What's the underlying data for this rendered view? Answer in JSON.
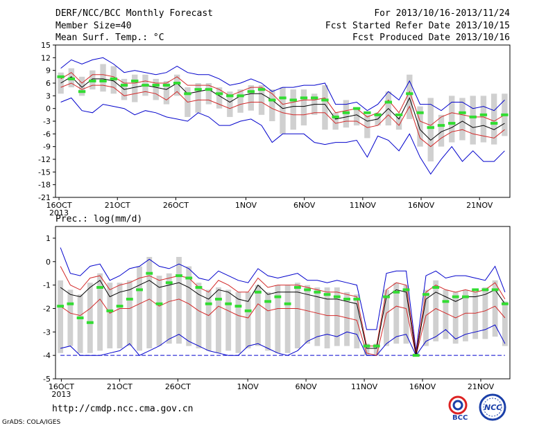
{
  "header": {
    "title": "DERF/NCC/BCC Monthly Forecast",
    "member_size": "Member Size=40",
    "variable": "Mean Surf. Temp.: °C",
    "period": "For 2013/10/16-2013/11/24",
    "fcst_started": "Fcst Started Refer Date 2013/10/15",
    "fcst_produced": "Fcst Produced Date 2013/10/16"
  },
  "footer": {
    "url": "http://cmdp.ncc.cma.gov.cn",
    "grads": "GrADS: COLA/IGES",
    "logo_bcc": "BCC",
    "logo_ncc": "NCC"
  },
  "colors": {
    "max": "#0000cc",
    "spread": "#d22828",
    "mean": "#000000",
    "median": "#32dc32",
    "box": "#d0d0d0",
    "baseline": "#0000cc"
  },
  "chart_data": [
    {
      "type": "box-line",
      "title": "Mean Surf. Temp.: °C",
      "ylim": [
        -21,
        15
      ],
      "yticks": [
        -21,
        -18,
        -15,
        -12,
        -9,
        -6,
        -3,
        0,
        3,
        6,
        9,
        12,
        15
      ],
      "xlabels": [
        {
          "day": 0,
          "label": "16OCT",
          "sub": "2013"
        },
        {
          "day": 5,
          "label": "21OCT"
        },
        {
          "day": 10,
          "label": "26OCT"
        },
        {
          "day": 16,
          "label": "1NOV"
        },
        {
          "day": 21,
          "label": "6NOV"
        },
        {
          "day": 26,
          "label": "11NOV"
        },
        {
          "day": 31,
          "label": "16NOV"
        },
        {
          "day": 36,
          "label": "21NOV"
        }
      ],
      "max": [
        9.5,
        11.5,
        10.5,
        11.5,
        12,
        10.5,
        8.5,
        9,
        8.5,
        8,
        8.5,
        10,
        8.5,
        8,
        8,
        7,
        5.5,
        6,
        7,
        6,
        4,
        5,
        5,
        5.5,
        5.5,
        6,
        1,
        1,
        1.5,
        -0.5,
        1,
        4,
        2,
        6.5,
        1,
        1,
        -0.5,
        1.5,
        1.5,
        0,
        0.5,
        -0.5,
        2
      ],
      "upper": [
        7,
        8.5,
        6,
        8,
        8,
        7.5,
        6,
        6,
        6.5,
        6,
        6,
        7.5,
        5.5,
        5.5,
        5.5,
        4.5,
        3,
        4,
        5,
        5,
        3.5,
        1,
        1.5,
        2,
        2,
        2.5,
        -1,
        -0.5,
        0,
        -2,
        -1,
        2,
        -1,
        4,
        -3,
        -4,
        -2,
        -1,
        -1.5,
        -2,
        -2,
        -3,
        -1.5
      ],
      "mean": [
        6,
        7.5,
        5,
        7,
        7,
        6.5,
        4.5,
        5,
        5.5,
        5,
        4.5,
        6,
        3.5,
        4,
        4.5,
        3,
        1.5,
        3,
        3.5,
        3.5,
        2,
        0,
        0.5,
        0.5,
        1,
        1,
        -2.5,
        -2,
        -1.5,
        -3,
        -2.5,
        0,
        -2.5,
        2.5,
        -5,
        -7.5,
        -5.5,
        -4.5,
        -3,
        -4.5,
        -4,
        -5,
        -3.5
      ],
      "lower": [
        5,
        6,
        4.5,
        5.5,
        5.5,
        5,
        3,
        3.5,
        4,
        3.5,
        2,
        4,
        1.5,
        2,
        2,
        1,
        0,
        1,
        1.5,
        1.5,
        0,
        -1,
        -1.5,
        -1.5,
        -1,
        -1,
        -3.5,
        -3,
        -3,
        -4.5,
        -4,
        -1.5,
        -4,
        0.5,
        -7,
        -9,
        -7,
        -5.5,
        -5,
        -6,
        -6.5,
        -7,
        -5
      ],
      "min": [
        1.5,
        2.5,
        -0.5,
        -1,
        1,
        0.5,
        0,
        -1.5,
        -0.5,
        -1,
        -2,
        -2.5,
        -3,
        -1,
        -2,
        -4,
        -4,
        -3,
        -2.5,
        -4,
        -8,
        -6,
        -6,
        -6,
        -8,
        -8.5,
        -8,
        -8,
        -7.5,
        -11.5,
        -6.5,
        -7.5,
        -10,
        -6,
        -11.5,
        -15.5,
        -12,
        -9,
        -12.5,
        -10,
        -12.5,
        -12.5,
        -10
      ],
      "median": [
        7.5,
        7,
        4,
        6.5,
        6.5,
        7,
        5.5,
        6.5,
        5.5,
        5.5,
        5.5,
        6,
        3.5,
        4.5,
        4.5,
        3.5,
        3,
        3,
        4,
        4.5,
        2,
        2.5,
        2,
        2.5,
        2.5,
        2,
        -2,
        -1,
        0,
        -1,
        -1.5,
        1.5,
        -1.5,
        3.5,
        -1,
        -4.5,
        -4,
        -3.5,
        -1,
        -2,
        -1.5,
        -3.5,
        -1.5
      ],
      "box_top": [
        8.5,
        9.5,
        7.5,
        9,
        10.5,
        10,
        7,
        8,
        8,
        7,
        6.5,
        8,
        5,
        6,
        6,
        5,
        4,
        4.5,
        5.5,
        5.5,
        4.5,
        5,
        4.5,
        4.5,
        3.5,
        5.5,
        -1,
        2,
        0,
        -1.5,
        -1,
        4,
        -2,
        8,
        0.5,
        2.5,
        -1.5,
        3,
        2.5,
        3,
        3,
        3.5,
        3.5
      ],
      "box_bottom": [
        3.5,
        5,
        3,
        4.5,
        4,
        3.5,
        2,
        1.5,
        3,
        2,
        1,
        3,
        -2,
        -1,
        1,
        0,
        -2,
        -1,
        -0.5,
        -1.5,
        -3,
        -6,
        -5,
        -4,
        -1.5,
        -5,
        -5,
        -4.5,
        -4,
        -7,
        -4,
        -4,
        -5,
        -2.5,
        -9,
        -12.5,
        -9,
        -8,
        -7.5,
        -8.5,
        -8,
        -8.5,
        -6.5
      ]
    },
    {
      "type": "box-line",
      "title": "Prec.: log(mm/d)",
      "ylim": [
        -5,
        1.5
      ],
      "yticks": [
        -5,
        -4,
        -3,
        -2,
        -1,
        0,
        1
      ],
      "xlabels": [
        {
          "day": 0,
          "label": "16OCT",
          "sub": "2013"
        },
        {
          "day": 5,
          "label": "21OCT"
        },
        {
          "day": 10,
          "label": "26OCT"
        },
        {
          "day": 16,
          "label": "1NOV"
        },
        {
          "day": 21,
          "label": "6NOV"
        },
        {
          "day": 26,
          "label": "11NOV"
        },
        {
          "day": 31,
          "label": "16NOV"
        },
        {
          "day": 36,
          "label": "21NOV"
        }
      ],
      "max": [
        0.6,
        -0.5,
        -0.6,
        -0.2,
        -0.1,
        -0.8,
        -0.6,
        -0.3,
        -0.2,
        0.1,
        -0.2,
        -0.3,
        -0.1,
        -0.3,
        -0.7,
        -0.8,
        -0.4,
        -0.6,
        -0.8,
        -0.9,
        -0.3,
        -0.6,
        -0.7,
        -0.6,
        -0.5,
        -0.8,
        -0.8,
        -0.9,
        -0.8,
        -0.9,
        -1.0,
        -2.9,
        -2.9,
        -0.5,
        -0.4,
        -0.4,
        -3.8,
        -0.6,
        -0.4,
        -0.7,
        -0.6,
        -0.6,
        -0.7,
        -0.8,
        -0.2,
        -1.3
      ],
      "upper": [
        -0.2,
        -1.0,
        -1.2,
        -0.7,
        -0.6,
        -1.2,
        -1.0,
        -0.9,
        -0.7,
        -0.6,
        -0.8,
        -0.7,
        -0.6,
        -0.7,
        -1.1,
        -1.3,
        -0.8,
        -1.0,
        -1.3,
        -1.3,
        -0.7,
        -1.1,
        -1.0,
        -1.0,
        -1.0,
        -1.1,
        -1.2,
        -1.3,
        -1.3,
        -1.4,
        -1.5,
        -3.6,
        -3.6,
        -1.2,
        -0.9,
        -1.0,
        -3.9,
        -1.3,
        -1.0,
        -1.2,
        -1.3,
        -1.2,
        -1.3,
        -1.2,
        -0.9,
        -1.6
      ],
      "mean": [
        -1.1,
        -1.4,
        -1.5,
        -1.1,
        -0.8,
        -1.5,
        -1.3,
        -1.2,
        -1.0,
        -0.8,
        -1.1,
        -1.0,
        -0.9,
        -1.1,
        -1.4,
        -1.6,
        -1.2,
        -1.3,
        -1.6,
        -1.7,
        -1.0,
        -1.4,
        -1.3,
        -1.3,
        -1.3,
        -1.4,
        -1.5,
        -1.6,
        -1.6,
        -1.7,
        -1.8,
        -3.7,
        -3.7,
        -1.5,
        -1.2,
        -1.3,
        -4.0,
        -1.6,
        -1.3,
        -1.5,
        -1.7,
        -1.5,
        -1.5,
        -1.4,
        -1.2,
        -1.8
      ],
      "lower": [
        -1.9,
        -2.2,
        -2.3,
        -2.0,
        -1.6,
        -2.2,
        -2.0,
        -2.0,
        -1.8,
        -1.6,
        -1.9,
        -1.7,
        -1.6,
        -1.8,
        -2.1,
        -2.3,
        -1.9,
        -2.1,
        -2.3,
        -2.4,
        -1.8,
        -2.1,
        -2.0,
        -2.0,
        -2.0,
        -2.1,
        -2.2,
        -2.3,
        -2.3,
        -2.4,
        -2.5,
        -3.9,
        -4.0,
        -2.2,
        -1.9,
        -2.0,
        -4.0,
        -2.3,
        -2.0,
        -2.2,
        -2.4,
        -2.2,
        -2.2,
        -2.1,
        -1.9,
        -2.4
      ],
      "min": [
        -3.7,
        -3.6,
        -4.0,
        -4.0,
        -4.0,
        -3.9,
        -3.8,
        -3.5,
        -4.0,
        -3.8,
        -3.6,
        -3.3,
        -3.1,
        -3.4,
        -3.6,
        -3.8,
        -3.9,
        -4.0,
        -4.0,
        -3.6,
        -3.5,
        -3.7,
        -3.9,
        -4.0,
        -3.8,
        -3.4,
        -3.2,
        -3.1,
        -3.2,
        -3.0,
        -3.1,
        -4.0,
        -4.0,
        -3.5,
        -3.2,
        -3.1,
        -4.0,
        -3.4,
        -3.2,
        -2.9,
        -3.3,
        -3.1,
        -3.0,
        -2.9,
        -2.7,
        -3.5
      ],
      "median": [
        -1.9,
        -1.8,
        -2.4,
        -2.6,
        -1.1,
        -2.1,
        -1.9,
        -1.6,
        -1.2,
        -0.5,
        -1.8,
        -0.9,
        -0.6,
        -0.7,
        -1.1,
        -1.8,
        -1.6,
        -1.8,
        -1.9,
        -2.1,
        -1.3,
        -1.7,
        -1.5,
        -1.8,
        -1.1,
        -1.2,
        -1.3,
        -1.4,
        -1.5,
        -1.6,
        -1.6,
        -3.6,
        -3.6,
        -1.5,
        -1.3,
        -1.2,
        -4.0,
        -1.4,
        -1.1,
        -1.7,
        -1.5,
        -1.5,
        -1.2,
        -1.2,
        -1.2,
        -1.8
      ],
      "box_top": [
        -0.8,
        -1.2,
        -1.4,
        -0.9,
        -0.5,
        -0.9,
        -0.9,
        -0.8,
        -0.2,
        0.2,
        -0.6,
        -0.5,
        0.2,
        -0.2,
        -0.9,
        -1.2,
        -1.1,
        -1.2,
        -1.3,
        -1.3,
        -1.0,
        -1.3,
        -1.0,
        -1.0,
        -0.9,
        -1.0,
        -1.1,
        -1.1,
        -1.1,
        -1.3,
        -1.4,
        -3.5,
        -3.5,
        -1.2,
        -0.9,
        -1.0,
        -3.9,
        -1.2,
        -0.8,
        -1.2,
        -1.3,
        -1.2,
        -1.3,
        -1.1,
        -0.8,
        -1.7
      ],
      "box_bottom": [
        -3.9,
        -3.6,
        -3.9,
        -3.9,
        -3.8,
        -3.7,
        -3.7,
        -3.6,
        -3.8,
        -3.7,
        -3.6,
        -3.5,
        -3.5,
        -3.6,
        -3.7,
        -3.8,
        -3.9,
        -3.8,
        -3.9,
        -3.7,
        -3.6,
        -3.8,
        -3.9,
        -3.9,
        -3.7,
        -3.5,
        -3.6,
        -3.7,
        -3.6,
        -3.6,
        -3.7,
        -4.0,
        -4.0,
        -3.6,
        -3.5,
        -3.5,
        -4.0,
        -3.6,
        -3.4,
        -3.3,
        -3.5,
        -3.4,
        -3.3,
        -3.3,
        -3.2,
        -3.6
      ],
      "baseline": -4.0
    }
  ],
  "precip_label": "Prec.: log(mm/d)"
}
